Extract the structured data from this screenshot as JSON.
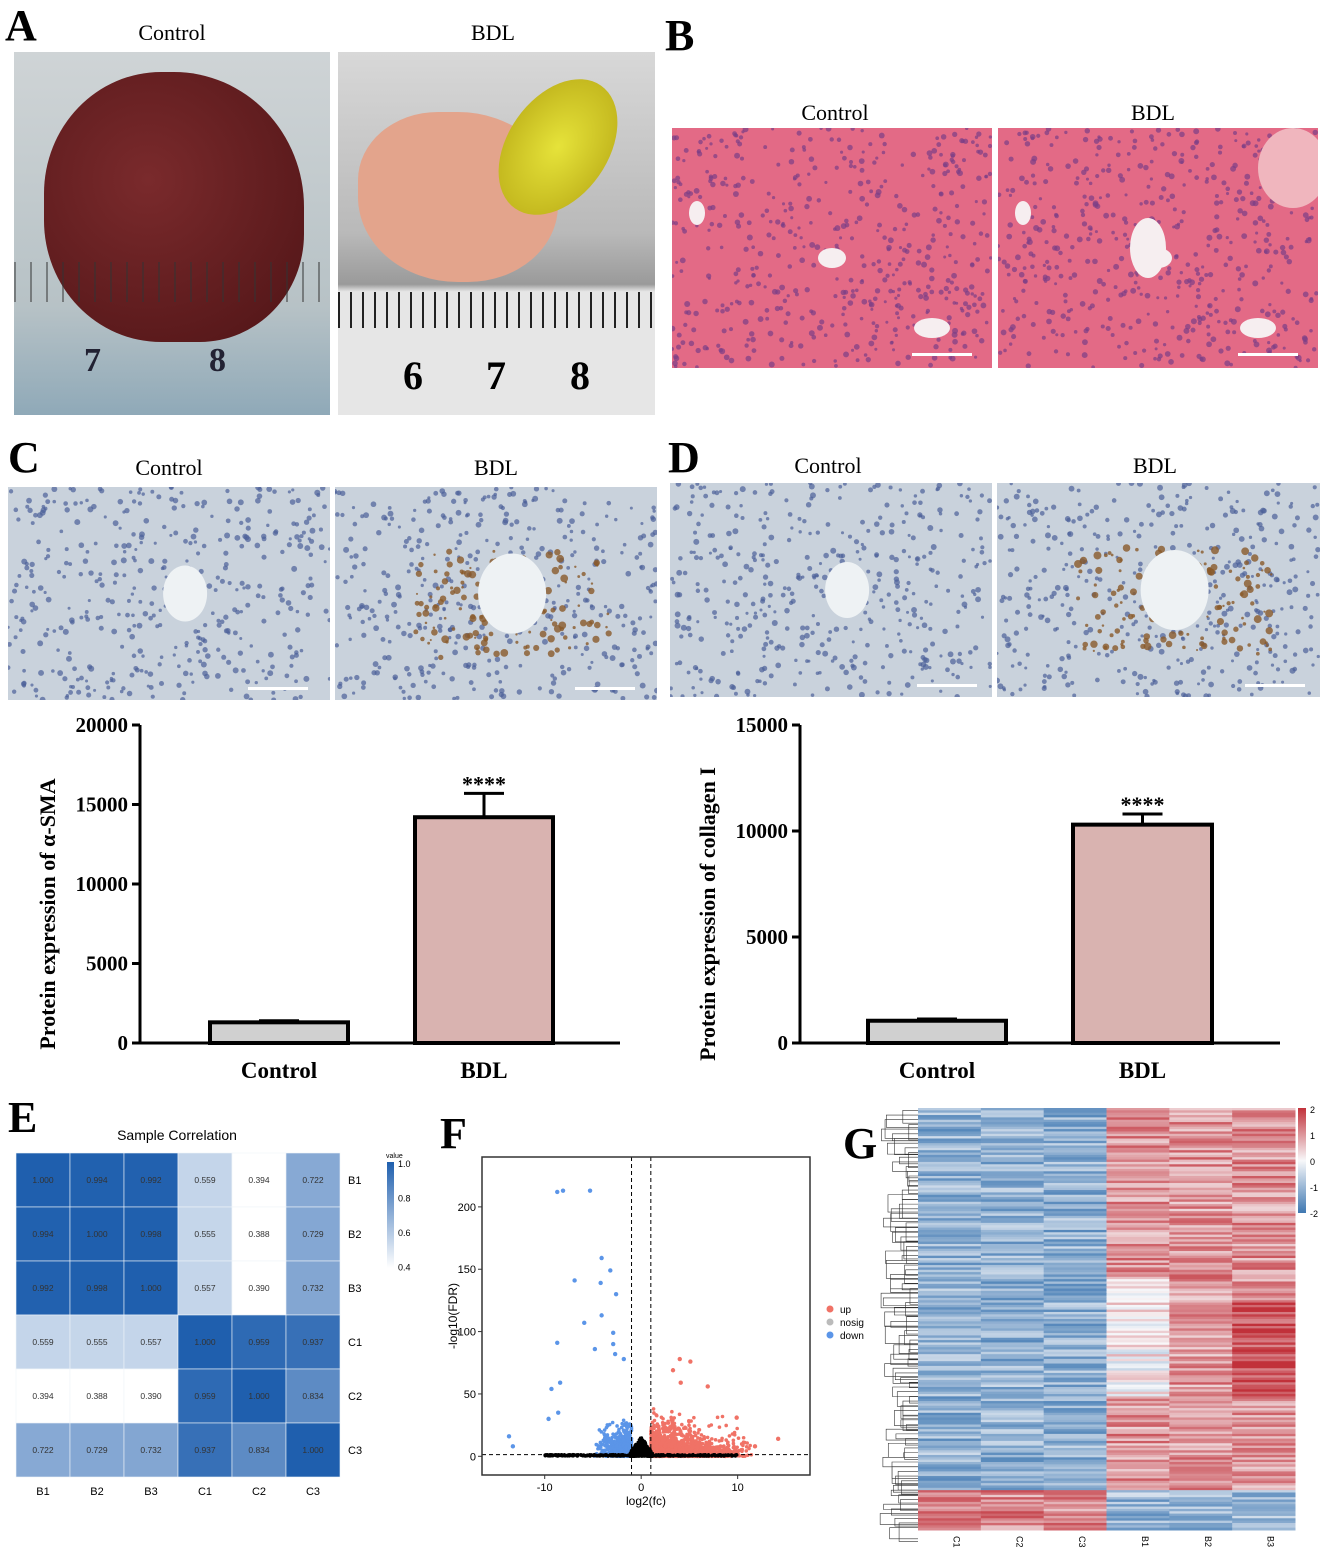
{
  "panels": {
    "A": "A",
    "B": "B",
    "C": "C",
    "D": "D",
    "E": "E",
    "F": "F",
    "G": "G"
  },
  "groups": {
    "control": "Control",
    "bdl": "BDL"
  },
  "ruler": {
    "control_marks": [
      "7",
      "8"
    ],
    "bdl_marks": [
      "6",
      "7",
      "8"
    ]
  },
  "colors": {
    "bar_control": "#d0d0d0",
    "bar_bdl": "#d9b3b0",
    "up": "#f07266",
    "down": "#5b95e8",
    "nosig": "#bbbbbb",
    "heat_high": "#c1313a",
    "heat_low": "#3f78b2",
    "corr_high": "#1f5fae"
  },
  "chart_data": [
    {
      "type": "bar",
      "panel": "C",
      "categories": [
        "Control",
        "BDL"
      ],
      "values": [
        1300,
        14200
      ],
      "errors": [
        100,
        1500
      ],
      "ylabel": "Protein expression of α-SMA",
      "ylim": [
        0,
        20000
      ],
      "yticks": [
        0,
        5000,
        10000,
        15000,
        20000
      ],
      "annotation": "****"
    },
    {
      "type": "bar",
      "panel": "D",
      "categories": [
        "Control",
        "BDL"
      ],
      "values": [
        1050,
        10300
      ],
      "errors": [
        80,
        500
      ],
      "ylabel": "Protein expression of collagen I",
      "ylim": [
        0,
        15000
      ],
      "yticks": [
        0,
        5000,
        10000,
        15000
      ],
      "annotation": "****"
    },
    {
      "type": "heatmap",
      "panel": "E",
      "title": "Sample Correlation",
      "labels": [
        "B1",
        "B2",
        "B3",
        "C1",
        "C2",
        "C3"
      ],
      "values": [
        [
          "1.000",
          "0.994",
          "0.992",
          "0.559",
          "0.394",
          "0.722"
        ],
        [
          "0.994",
          "1.000",
          "0.998",
          "0.555",
          "0.388",
          "0.729"
        ],
        [
          "0.992",
          "0.998",
          "1.000",
          "0.557",
          "0.390",
          "0.732"
        ],
        [
          "0.559",
          "0.555",
          "0.557",
          "1.000",
          "0.959",
          "0.937"
        ],
        [
          "0.394",
          "0.388",
          "0.390",
          "0.959",
          "1.000",
          "0.834"
        ],
        [
          "0.722",
          "0.729",
          "0.732",
          "0.937",
          "0.834",
          "1.000"
        ]
      ],
      "legend_title": "value",
      "legend_ticks": [
        "1.0",
        "0.8",
        "0.6",
        "0.4"
      ],
      "range": [
        0.4,
        1.0
      ]
    },
    {
      "type": "scatter",
      "panel": "F",
      "xlabel": "log2(fc)",
      "ylabel": "-log10(FDR)",
      "xlim": [
        -16.5,
        17.5
      ],
      "ylim": [
        -15,
        240
      ],
      "xticks": [
        "-10",
        "0",
        "10"
      ],
      "yticks": [
        "0",
        "50",
        "100",
        "150",
        "200"
      ],
      "thresholds": {
        "x": [
          -1,
          1
        ],
        "y": 1.3
      },
      "legend": [
        {
          "name": "up"
        },
        {
          "name": "nosig"
        },
        {
          "name": "down"
        }
      ],
      "legend_placement": "right",
      "down_points": [
        [
          -8.7,
          212
        ],
        [
          -8.1,
          213
        ],
        [
          -5.3,
          213
        ],
        [
          -4.1,
          159
        ],
        [
          -3.2,
          149
        ],
        [
          -6.9,
          141
        ],
        [
          -4.2,
          139
        ],
        [
          -2.6,
          130
        ],
        [
          -4.1,
          113
        ],
        [
          -5.9,
          107
        ],
        [
          -2.9,
          99
        ],
        [
          -8.7,
          91
        ],
        [
          -4.8,
          86
        ],
        [
          -2.9,
          90
        ],
        [
          -2.7,
          82
        ],
        [
          -1.8,
          78
        ],
        [
          -8.4,
          59
        ],
        [
          -9.3,
          54
        ],
        [
          -8.6,
          35
        ],
        [
          -13.7,
          16
        ],
        [
          -13.3,
          8
        ],
        [
          -9.6,
          30
        ]
      ],
      "up_points": [
        [
          4.0,
          78
        ],
        [
          5.1,
          76
        ],
        [
          3.3,
          69
        ],
        [
          6.9,
          56
        ],
        [
          9.9,
          31
        ],
        [
          14.2,
          14
        ],
        [
          4.1,
          59
        ],
        [
          11.8,
          8
        ]
      ]
    },
    {
      "type": "heatmap",
      "panel": "G",
      "columns": [
        "C1",
        "C2",
        "C3",
        "B1",
        "B2",
        "B3"
      ],
      "legend_ticks": [
        "2",
        "1",
        "0",
        "-1",
        "-2"
      ],
      "range": [
        -2,
        2
      ]
    }
  ]
}
